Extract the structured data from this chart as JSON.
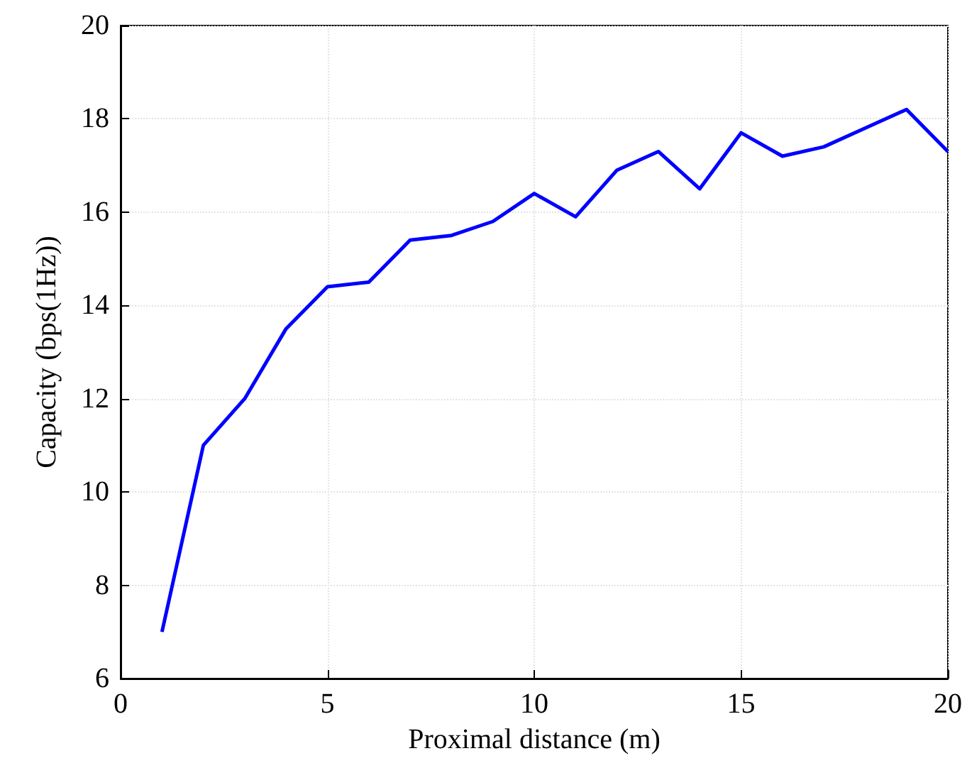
{
  "chart_data": {
    "type": "line",
    "xlabel": "Proximal distance (m)",
    "ylabel": "Capacity (bps(1Hz))",
    "x": [
      1,
      2,
      3,
      4,
      5,
      6,
      7,
      8,
      9,
      10,
      11,
      12,
      13,
      14,
      15,
      16,
      17,
      18,
      19,
      20
    ],
    "series": [
      {
        "color": "#0000ff",
        "values": [
          7,
          11,
          12,
          13.5,
          14.4,
          14.5,
          15.4,
          15.5,
          15.8,
          16.4,
          15.9,
          16.9,
          17.3,
          16.5,
          17.7,
          17.2,
          17.4,
          17.8,
          18.2,
          17.3
        ]
      }
    ],
    "xlim": [
      0,
      20
    ],
    "xticks": [
      0,
      5,
      10,
      15,
      20
    ],
    "ylim": [
      6,
      20
    ],
    "yticks": [
      6,
      8,
      10,
      12,
      14,
      16,
      18,
      20
    ],
    "grid": true,
    "line_style": "solid",
    "marker": "none"
  }
}
